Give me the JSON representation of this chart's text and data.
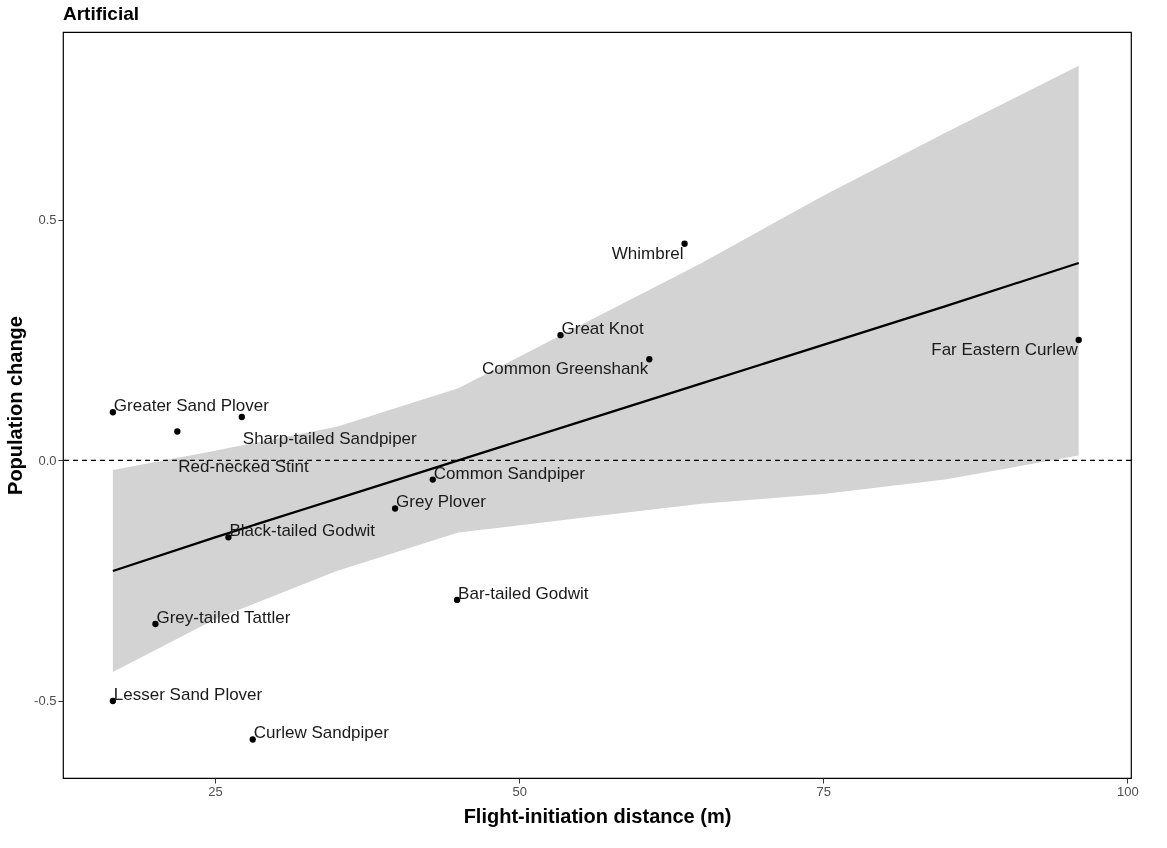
{
  "chart_data": {
    "type": "scatter",
    "title": "Artificial",
    "xlabel": "Flight-initiation distance (m)",
    "ylabel": "Population change",
    "xlim": [
      12.5,
      100.3
    ],
    "xticks": [
      25,
      50,
      75,
      100
    ],
    "ylim": [
      -0.66,
      0.89
    ],
    "yticks": [
      -0.5,
      {
        "value": 0,
        "label": "0.0"
      },
      0.5
    ],
    "series": [
      {
        "type": "line",
        "color": "#000000",
        "line_style": "solid",
        "marker": "none",
        "x": [
          16.6,
          25,
          35,
          45,
          55,
          65,
          75,
          85,
          96
        ],
        "values": [
          -0.23,
          -0.16,
          -0.08,
          0.0,
          0.08,
          0.16,
          0.24,
          0.32,
          0.41
        ],
        "lower": [
          -0.44,
          -0.33,
          -0.23,
          -0.15,
          -0.12,
          -0.09,
          -0.07,
          -0.04,
          0.01
        ],
        "upper": [
          -0.02,
          0.02,
          0.07,
          0.15,
          0.28,
          0.41,
          0.55,
          0.68,
          0.82
        ]
      },
      {
        "type": "scatter",
        "color": "#000000",
        "marker": "circle",
        "x": [
          16.6,
          27.2,
          21.9,
          63.6,
          53.4,
          60.7,
          96.0,
          42.9,
          39.8,
          26.1,
          44.9,
          20.1,
          16.6,
          28.1
        ],
        "values": [
          0.1,
          0.09,
          0.06,
          0.45,
          0.26,
          0.21,
          0.25,
          -0.04,
          -0.1,
          -0.16,
          -0.29,
          -0.34,
          -0.5,
          -0.58
        ]
      }
    ],
    "ref_lines": [
      {
        "axis": "y",
        "value": 0,
        "line_style": "dashed",
        "color": "#000000"
      }
    ],
    "annotations": [
      {
        "text": "Greater Sand Plover",
        "x": 16.6,
        "y": 0.1
      },
      {
        "text": "Sharp-tailed Sandpiper",
        "x": 27.2,
        "y": 0.09
      },
      {
        "text": "Red-necked Stint",
        "x": 21.9,
        "y": 0.06
      },
      {
        "text": "Whimbrel",
        "x": 63.6,
        "y": 0.45
      },
      {
        "text": "Great Knot",
        "x": 53.4,
        "y": 0.26
      },
      {
        "text": "Common Greenshank",
        "x": 60.7,
        "y": 0.21
      },
      {
        "text": "Far Eastern Curlew",
        "x": 96.0,
        "y": 0.25
      },
      {
        "text": "Common Sandpiper",
        "x": 42.9,
        "y": -0.04
      },
      {
        "text": "Grey Plover",
        "x": 39.8,
        "y": -0.1
      },
      {
        "text": "Black-tailed Godwit",
        "x": 26.1,
        "y": -0.16
      },
      {
        "text": "Bar-tailed Godwit",
        "x": 44.9,
        "y": -0.29
      },
      {
        "text": "Grey-tailed Tattler",
        "x": 20.1,
        "y": -0.34
      },
      {
        "text": "Lesser Sand Plover",
        "x": 16.6,
        "y": -0.5
      },
      {
        "text": "Curlew Sandpiper",
        "x": 28.1,
        "y": -0.58
      }
    ]
  }
}
